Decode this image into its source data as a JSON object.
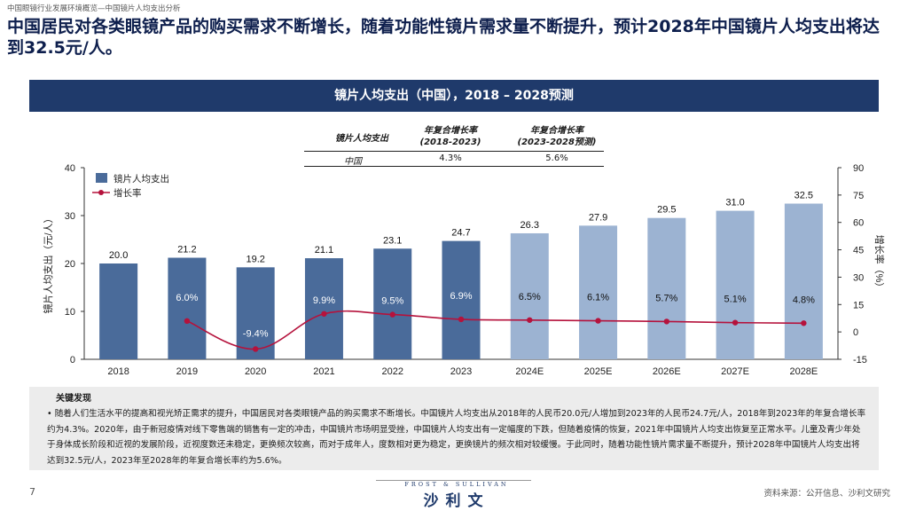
{
  "breadcrumb": "中国眼镜行业发展环境概览—中国镜片人均支出分析",
  "headline": "中国居民对各类眼镜产品的购买需求不断增长，随着功能性镜片需求量不断提升，预计2028年中国镜片人均支出将达到32.5元/人。",
  "banner_title": "镜片人均支出（中国），2018 – 2028预测",
  "cagr_table": {
    "col0_header": "镜片人均支出",
    "col1_header_line1": "年复合增长率",
    "col1_header_line2": "(2018-2023)",
    "col2_header_line1": "年复合增长率",
    "col2_header_line2": "(2023-2028预测)",
    "row_label": "中国",
    "row_v1": "4.3%",
    "row_v2": "5.6%"
  },
  "colors": {
    "bar_actual": "#4a6b9a",
    "bar_forecast": "#9cb3d2",
    "line": "#b5123c",
    "banner": "#1f3a6b"
  },
  "chart_data": {
    "type": "bar",
    "title": "镜片人均支出（中国），2018 – 2028预测",
    "categories": [
      "2018",
      "2019",
      "2020",
      "2021",
      "2022",
      "2023",
      "2024E",
      "2025E",
      "2026E",
      "2027E",
      "2028E"
    ],
    "forecast_from_index": 6,
    "ylabel": "镜片人均支出（元/人）",
    "ylim": [
      0,
      40
    ],
    "yticks": [
      "0",
      "10",
      "20",
      "30",
      "40"
    ],
    "y2label": "增长率（%）",
    "y2lim": [
      -15,
      90
    ],
    "y2ticks": [
      "-15",
      "0",
      "15",
      "30",
      "45",
      "60",
      "75",
      "90"
    ],
    "legend_position": "top-left",
    "series": [
      {
        "name": "镜片人均支出",
        "type": "bar",
        "values": [
          20.0,
          21.2,
          19.2,
          21.1,
          23.1,
          24.7,
          26.3,
          27.9,
          29.5,
          31.0,
          32.5
        ],
        "labels": [
          "20.0",
          "21.2",
          "19.2",
          "21.1",
          "23.1",
          "24.7",
          "26.3",
          "27.9",
          "29.5",
          "31.0",
          "32.5"
        ]
      },
      {
        "name": "增长率",
        "type": "line",
        "axis": "right",
        "values": [
          null,
          6.0,
          -9.4,
          9.9,
          9.5,
          6.9,
          6.5,
          6.1,
          5.7,
          5.1,
          4.8
        ],
        "labels": [
          "",
          "6.0%",
          "-9.4%",
          "9.9%",
          "9.5%",
          "6.9%",
          "6.5%",
          "6.1%",
          "5.7%",
          "5.1%",
          "4.8%"
        ]
      }
    ]
  },
  "findings": {
    "title": "关键发现",
    "body": "• 随着人们生活水平的提高和视光矫正需求的提升，中国居民对各类眼镜产品的购买需求不断增长。中国镜片人均支出从2018年的人民币20.0元/人增加到2023年的人民币24.7元/人，2018年到2023年的年复合增长率约为4.3%。2020年，由于新冠疫情对线下零售端的销售有一定的冲击，中国镜片市场明显受挫，中国镜片人均支出有一定幅度的下跌，但随着疫情的恢复，2021年中国镜片人均支出恢复至正常水平。儿童及青少年处于身体成长阶段和近视的发展阶段，近视度数还未稳定，更换频次较高，而对于成年人，度数相对更为稳定，更换镜片的频次相对较缓慢。于此同时，随着功能性镜片需求量不断提升，预计2028年中国镜片人均支出将达到32.5元/人，2023年至2028年的年复合增长率约为5.6%。"
  },
  "footer": {
    "page_number": "7",
    "logo_small": "FROST & SULLIVAN",
    "logo_main": "沙利文",
    "source": "资料来源：公开信息、沙利文研究"
  }
}
